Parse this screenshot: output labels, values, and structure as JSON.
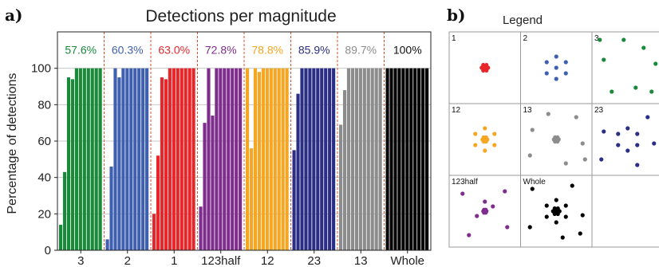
{
  "panel_labels": {
    "a": "a)",
    "b": "b)"
  },
  "chart_data": {
    "type": "bar",
    "title": "Detections per magnitude",
    "xlabel": "",
    "ylabel": "Percentage of detections",
    "ylim": [
      0,
      120
    ],
    "yticks": [
      0,
      20,
      40,
      60,
      80,
      100
    ],
    "grid": true,
    "series": [
      {
        "name": "3",
        "overall": "57.6%",
        "color": "#1a8a3a",
        "values": [
          14,
          43,
          95,
          94,
          100,
          100,
          100,
          100,
          100,
          100,
          100
        ]
      },
      {
        "name": "2",
        "overall": "60.3%",
        "color": "#3f5fb0",
        "values": [
          6,
          46,
          100,
          95,
          100,
          100,
          100,
          100,
          100,
          100,
          100
        ]
      },
      {
        "name": "1",
        "overall": "63.0%",
        "color": "#e8262a",
        "values": [
          20,
          52,
          95,
          94,
          100,
          100,
          100,
          100,
          100,
          100,
          100
        ]
      },
      {
        "name": "123half",
        "overall": "72.8%",
        "color": "#7e2d8c",
        "values": [
          24,
          70,
          100,
          74,
          100,
          100,
          100,
          100,
          100,
          100,
          100
        ]
      },
      {
        "name": "12",
        "overall": "78.8%",
        "color": "#f5a623",
        "values": [
          100,
          56,
          100,
          98,
          100,
          100,
          100,
          100,
          100,
          100,
          100
        ]
      },
      {
        "name": "23",
        "overall": "85.9%",
        "color": "#2b2e85",
        "values": [
          55,
          86,
          100,
          100,
          100,
          100,
          100,
          100,
          100,
          100,
          100
        ]
      },
      {
        "name": "13",
        "overall": "89.7%",
        "color": "#8c8c8c",
        "values": [
          69,
          88,
          100,
          100,
          100,
          100,
          100,
          100,
          100,
          100,
          100
        ]
      },
      {
        "name": "Whole",
        "overall": "100%",
        "color": "#000000",
        "values": [
          100,
          100,
          100,
          100,
          100,
          100,
          100,
          100,
          100,
          100,
          100
        ]
      }
    ]
  },
  "legend": {
    "title": "Legend",
    "cells": [
      {
        "label": "1",
        "color": "#e8262a",
        "pattern": "tight-cluster"
      },
      {
        "label": "2",
        "color": "#3f5fb0",
        "pattern": "small-ring"
      },
      {
        "label": "3",
        "color": "#1a8a3a",
        "pattern": "wide-scatter"
      },
      {
        "label": "12",
        "color": "#f5a623",
        "pattern": "cluster-plus-ring"
      },
      {
        "label": "13",
        "color": "#8c8c8c",
        "pattern": "cluster-plus-wide"
      },
      {
        "label": "23",
        "color": "#2b2e85",
        "pattern": "ring-plus-wide"
      },
      {
        "label": "123half",
        "color": "#7e2d8c",
        "pattern": "mixed"
      },
      {
        "label": "Whole",
        "color": "#000000",
        "pattern": "all"
      },
      {
        "label": "",
        "color": "#ffffff",
        "pattern": "empty"
      }
    ]
  }
}
